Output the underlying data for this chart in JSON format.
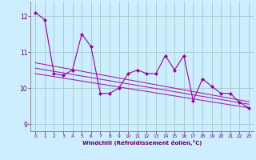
{
  "xlabel": "Windchill (Refroidissement éolien,°C)",
  "x": [
    0,
    1,
    2,
    3,
    4,
    5,
    6,
    7,
    8,
    9,
    10,
    11,
    12,
    13,
    14,
    15,
    16,
    17,
    18,
    19,
    20,
    21,
    22,
    23
  ],
  "y_main": [
    12.1,
    11.9,
    10.4,
    10.35,
    10.5,
    11.5,
    11.15,
    9.85,
    9.85,
    10.0,
    10.4,
    10.5,
    10.4,
    10.4,
    10.9,
    10.5,
    10.9,
    9.65,
    10.25,
    10.05,
    9.85,
    9.85,
    9.6,
    9.45
  ],
  "line_color": "#990099",
  "marker_color": "#990099",
  "bg_color": "#cceeff",
  "grid_color": "#aacccc",
  "ylim": [
    8.8,
    12.4
  ],
  "xlim": [
    -0.5,
    23.5
  ],
  "yticks": [
    9,
    10,
    11,
    12
  ],
  "xticks": [
    0,
    1,
    2,
    3,
    4,
    5,
    6,
    7,
    8,
    9,
    10,
    11,
    12,
    13,
    14,
    15,
    16,
    17,
    18,
    19,
    20,
    21,
    22,
    23
  ],
  "reg_lines": [
    {
      "start": 10.4,
      "end": 9.45
    },
    {
      "start": 10.55,
      "end": 9.55
    },
    {
      "start": 10.7,
      "end": 9.62
    }
  ],
  "reg_color": "#aa22aa"
}
